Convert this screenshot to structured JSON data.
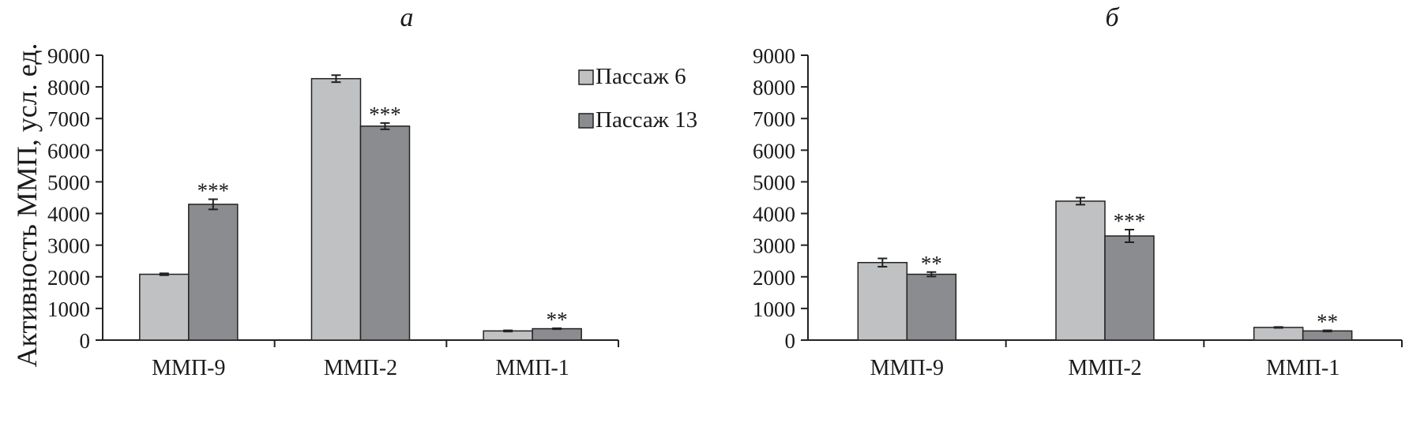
{
  "figure": {
    "ylabel": "Активность ММП, усл. ед.",
    "legend": [
      {
        "label": "Пассаж 6",
        "color": "#c0c1c3"
      },
      {
        "label": "Пассаж 13",
        "color": "#8b8c8f"
      }
    ]
  },
  "chart_data": [
    {
      "type": "bar",
      "panel_label": "а",
      "title": "",
      "xlabel": "",
      "ylabel": "Активность ММП, усл. ед.",
      "ylim": [
        0,
        9000
      ],
      "yticks": [
        "0",
        "1000",
        "2000",
        "3000",
        "4000",
        "5000",
        "6000",
        "7000",
        "8000",
        "9000"
      ],
      "categories": [
        "ММП-9",
        "ММП-2",
        "ММП-1"
      ],
      "series": [
        {
          "name": "Пассаж 6",
          "values": [
            2080,
            8260,
            290
          ],
          "errors": [
            30,
            110,
            20
          ],
          "sig": [
            "",
            "",
            ""
          ]
        },
        {
          "name": "Пассаж 13",
          "values": [
            4290,
            6760,
            360
          ],
          "errors": [
            160,
            100,
            15
          ],
          "sig": [
            "***",
            "***",
            "**"
          ]
        }
      ],
      "grid": false,
      "legend_position": "top-right"
    },
    {
      "type": "bar",
      "panel_label": "б",
      "title": "",
      "xlabel": "",
      "ylabel": "",
      "ylim": [
        0,
        9000
      ],
      "yticks": [
        "0",
        "1000",
        "2000",
        "3000",
        "4000",
        "5000",
        "6000",
        "7000",
        "8000",
        "9000"
      ],
      "categories": [
        "ММП-9",
        "ММП-2",
        "ММП-1"
      ],
      "series": [
        {
          "name": "Пассаж 6",
          "values": [
            2450,
            4390,
            400
          ],
          "errors": [
            130,
            110,
            15
          ],
          "sig": [
            "",
            "",
            ""
          ]
        },
        {
          "name": "Пассаж 13",
          "values": [
            2080,
            3290,
            290
          ],
          "errors": [
            70,
            200,
            20
          ],
          "sig": [
            "**",
            "***",
            "**"
          ]
        }
      ],
      "grid": false,
      "legend_position": "none"
    }
  ]
}
